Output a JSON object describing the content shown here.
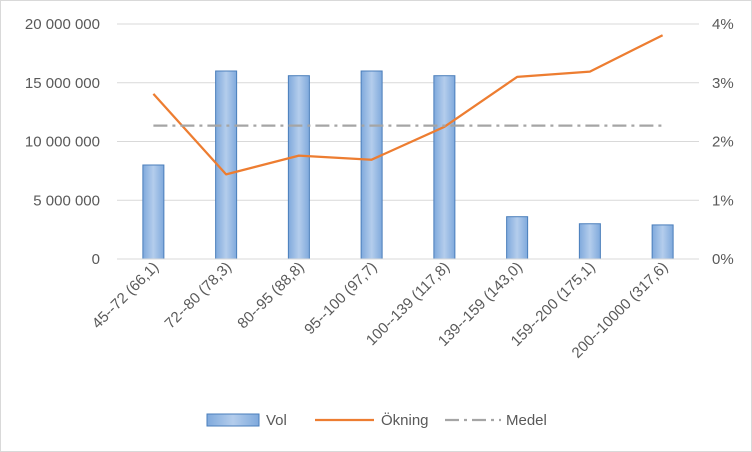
{
  "chart_data": {
    "type": "bar",
    "title": "",
    "xlabel": "",
    "ylabel": "",
    "categories": [
      "45--72 (66,1)",
      "72--80 (78,3)",
      "80--95 (88,8)",
      "95--100 (97,7)",
      "100--139 (117,8)",
      "139--159 (143,0)",
      "159--200 (175,1)",
      "200--10000 (317,6)"
    ],
    "y_ticks": [
      "0",
      "5 000 000",
      "10 000 000",
      "15 000 000",
      "20 000 000"
    ],
    "y2_ticks": [
      "0%",
      "1%",
      "2%",
      "3%",
      "4%"
    ],
    "ylim": [
      0,
      20000000
    ],
    "y2lim": [
      0,
      0.04
    ],
    "grid": true,
    "legend_position": "bottom",
    "series": [
      {
        "name": "Vol",
        "type": "bar",
        "axis": "left",
        "color": "#5b9bd5",
        "values": [
          8000000,
          16000000,
          15600000,
          16000000,
          15600000,
          3600000,
          3000000,
          2900000
        ]
      },
      {
        "name": "Ökning",
        "type": "line",
        "axis": "right",
        "color": "#ed7d31",
        "values": [
          0.0281,
          0.0144,
          0.0176,
          0.0169,
          0.0225,
          0.031,
          0.0319,
          0.0381
        ]
      },
      {
        "name": "Medel",
        "type": "line",
        "axis": "right",
        "style": "dash-dot",
        "color": "#a5a5a5",
        "values": [
          0.0227,
          0.0227,
          0.0227,
          0.0227,
          0.0227,
          0.0227,
          0.0227,
          0.0227
        ]
      }
    ]
  }
}
